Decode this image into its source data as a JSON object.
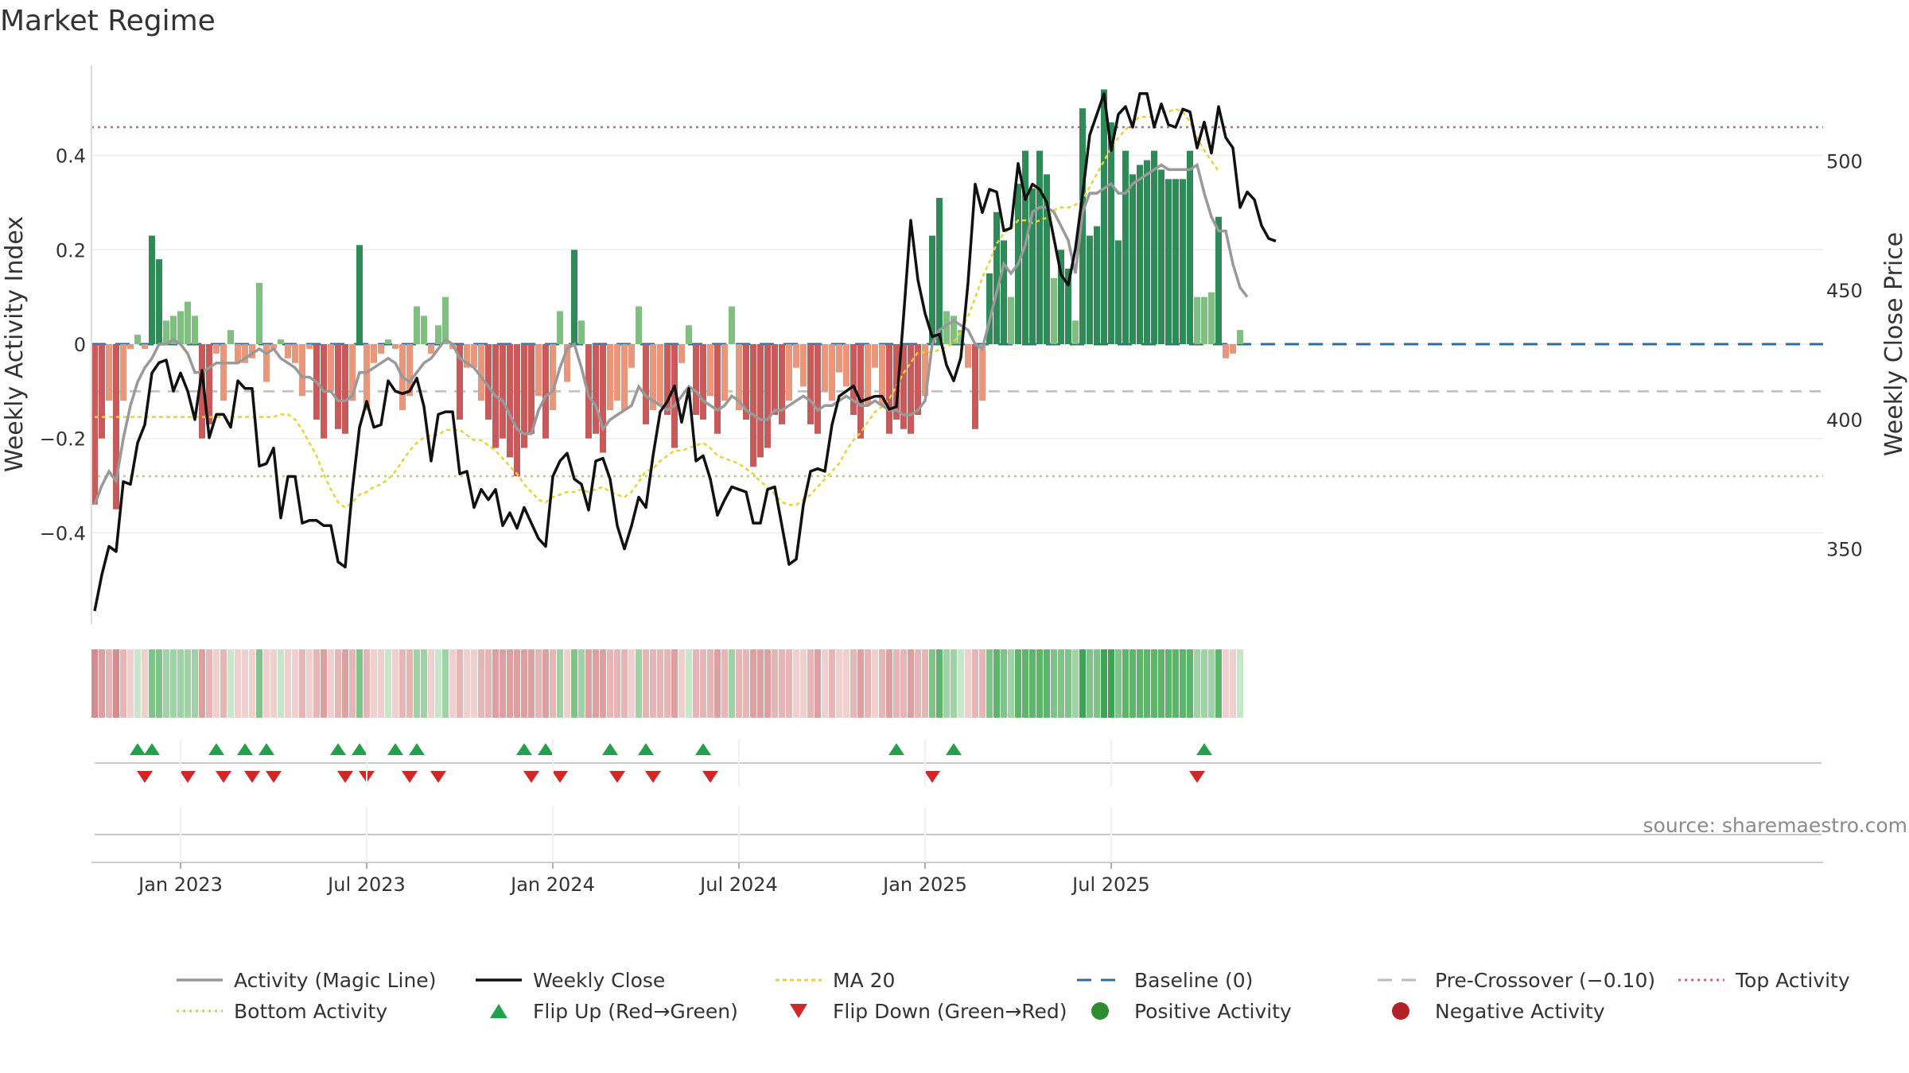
{
  "chart_data": {
    "type": "bar",
    "title": "Market Regime",
    "ylabel_left": "Weekly Activity Index",
    "ylabel_right": "Weekly Close Price",
    "source": "source: sharemaestro.com",
    "yticks_left": [
      "0.4",
      "0.2",
      "0",
      "−0.2",
      "−0.4"
    ],
    "yticks_left_values": [
      0.4,
      0.2,
      0,
      -0.2,
      -0.4
    ],
    "yticks_right": [
      "500",
      "450",
      "400",
      "350"
    ],
    "yticks_right_values": [
      500,
      450,
      400,
      350
    ],
    "xticks": [
      "Jan 2023",
      "Jul 2023",
      "Jan 2024",
      "Jul 2024",
      "Jan 2025",
      "Jul 2025"
    ],
    "xticks_week_index": [
      12,
      38,
      64,
      90,
      116,
      142
    ],
    "ylim_left": [
      -0.6,
      0.6
    ],
    "ylim_right": [
      321,
      537
    ],
    "levels": {
      "top_activity": 0.46,
      "bottom_activity": -0.28,
      "pre_crossover": -0.1,
      "baseline": 0
    },
    "colors": {
      "pos_strong": "#2e8b57",
      "pos_light": "#7fbf7f",
      "neg_strong": "#c95a5a",
      "neg_light": "#e8977a",
      "magic_line": "#999999",
      "close": "#111111",
      "ma20": "#e8d23a",
      "baseline": "#2a6ea6",
      "pre_crossover": "#bbbbbb",
      "top": "#d9607a",
      "bottom": "#a8d870",
      "flip_up": "#22a04b",
      "flip_down": "#d02828",
      "positive_dot": "#2e8b2e",
      "negative_dot": "#b22228"
    },
    "series": [
      {
        "name": "Weekly Activity Index",
        "kind": "bar",
        "values": [
          -0.34,
          -0.2,
          -0.12,
          -0.35,
          -0.12,
          -0.01,
          0.02,
          -0.01,
          0.23,
          0.18,
          0.05,
          0.06,
          0.07,
          0.09,
          0.06,
          -0.2,
          -0.17,
          -0.02,
          -0.12,
          0.03,
          -0.04,
          -0.04,
          -0.03,
          0.13,
          -0.08,
          -0.01,
          0.01,
          -0.03,
          -0.04,
          -0.11,
          -0.01,
          -0.16,
          -0.2,
          -0.1,
          -0.18,
          -0.19,
          -0.12,
          0.21,
          -0.14,
          -0.04,
          -0.02,
          0.01,
          -0.01,
          -0.14,
          -0.11,
          0.08,
          0.06,
          -0.02,
          0.04,
          0.1,
          -0.01,
          -0.16,
          -0.05,
          -0.05,
          -0.12,
          -0.16,
          -0.22,
          -0.2,
          -0.24,
          -0.28,
          -0.22,
          -0.19,
          -0.11,
          -0.2,
          -0.14,
          0.07,
          -0.08,
          0.2,
          0.05,
          -0.2,
          -0.19,
          -0.23,
          -0.14,
          -0.12,
          -0.14,
          -0.05,
          0.08,
          -0.17,
          -0.14,
          -0.13,
          -0.15,
          -0.22,
          -0.04,
          0.04,
          -0.15,
          -0.16,
          -0.11,
          -0.19,
          -0.12,
          0.08,
          -0.14,
          -0.16,
          -0.26,
          -0.24,
          -0.22,
          -0.15,
          -0.17,
          -0.12,
          -0.05,
          -0.09,
          -0.17,
          -0.19,
          -0.1,
          -0.12,
          -0.06,
          -0.09,
          -0.15,
          -0.2,
          -0.13,
          -0.05,
          -0.13,
          -0.19,
          -0.16,
          -0.18,
          -0.19,
          -0.15,
          -0.11,
          0.23,
          0.31,
          0.07,
          0.06,
          0.03,
          -0.05,
          -0.18,
          -0.12,
          0.15,
          0.28,
          0.22,
          0.1,
          0.34,
          0.41,
          0.33,
          0.41,
          0.36,
          0.14,
          0.2,
          0.16,
          0.05,
          0.5,
          0.23,
          0.25,
          0.54,
          0.47,
          0.22,
          0.41,
          0.36,
          0.38,
          0.39,
          0.41,
          0.37,
          0.35,
          0.35,
          0.35,
          0.41,
          0.1,
          0.1,
          0.11,
          0.27,
          -0.03,
          -0.02,
          0.03
        ]
      },
      {
        "name": "Activity (Magic Line)",
        "kind": "line",
        "values": [
          -0.34,
          -0.3,
          -0.27,
          -0.29,
          -0.2,
          -0.13,
          -0.08,
          -0.05,
          -0.03,
          0.0,
          0.0,
          0.01,
          0.0,
          -0.02,
          -0.06,
          -0.06,
          -0.05,
          -0.04,
          -0.04,
          -0.04,
          -0.04,
          -0.03,
          -0.02,
          -0.01,
          -0.02,
          -0.01,
          -0.03,
          -0.04,
          -0.05,
          -0.07,
          -0.07,
          -0.08,
          -0.1,
          -0.1,
          -0.12,
          -0.12,
          -0.11,
          -0.06,
          -0.06,
          -0.05,
          -0.04,
          -0.03,
          -0.04,
          -0.07,
          -0.08,
          -0.06,
          -0.04,
          -0.03,
          -0.01,
          0.01,
          0.0,
          -0.03,
          -0.04,
          -0.05,
          -0.07,
          -0.09,
          -0.11,
          -0.12,
          -0.15,
          -0.18,
          -0.19,
          -0.19,
          -0.14,
          -0.11,
          -0.1,
          -0.05,
          -0.01,
          0.0,
          -0.05,
          -0.11,
          -0.13,
          -0.18,
          -0.16,
          -0.15,
          -0.14,
          -0.13,
          -0.09,
          -0.11,
          -0.12,
          -0.13,
          -0.14,
          -0.13,
          -0.11,
          -0.09,
          -0.1,
          -0.12,
          -0.13,
          -0.14,
          -0.13,
          -0.11,
          -0.12,
          -0.14,
          -0.15,
          -0.16,
          -0.16,
          -0.14,
          -0.14,
          -0.13,
          -0.12,
          -0.11,
          -0.12,
          -0.14,
          -0.13,
          -0.13,
          -0.12,
          -0.11,
          -0.12,
          -0.13,
          -0.13,
          -0.12,
          -0.13,
          -0.14,
          -0.14,
          -0.15,
          -0.15,
          -0.14,
          -0.12,
          0.0,
          0.03,
          0.04,
          0.05,
          0.04,
          0.03,
          0.0,
          -0.01,
          0.05,
          0.11,
          0.17,
          0.15,
          0.17,
          0.21,
          0.28,
          0.29,
          0.29,
          0.28,
          0.25,
          0.22,
          0.15,
          0.28,
          0.32,
          0.32,
          0.33,
          0.34,
          0.32,
          0.32,
          0.34,
          0.35,
          0.36,
          0.37,
          0.38,
          0.37,
          0.37,
          0.37,
          0.37,
          0.38,
          0.32,
          0.27,
          0.24,
          0.24,
          0.17,
          0.12,
          0.1
        ]
      },
      {
        "name": "Weekly Close",
        "kind": "line",
        "axis": "right",
        "values": [
          326,
          340,
          351,
          349,
          376,
          375,
          391,
          398,
          418,
          422,
          423,
          411,
          418,
          411,
          400,
          419,
          393,
          402,
          402,
          397,
          415,
          412,
          412,
          382,
          383,
          389,
          362,
          378,
          378,
          360,
          361,
          361,
          359,
          359,
          345,
          343,
          373,
          397,
          407,
          397,
          398,
          415,
          411,
          410,
          411,
          416,
          405,
          384,
          402,
          403,
          403,
          379,
          380,
          366,
          373,
          369,
          373,
          359,
          364,
          358,
          366,
          360,
          354,
          351,
          378,
          384,
          387,
          377,
          375,
          365,
          384,
          385,
          377,
          359,
          350,
          359,
          370,
          366,
          386,
          403,
          407,
          413,
          399,
          412,
          384,
          386,
          377,
          363,
          369,
          374,
          373,
          372,
          360,
          360,
          373,
          374,
          359,
          344,
          346,
          367,
          380,
          381,
          380,
          398,
          409,
          411,
          413,
          407,
          408,
          409,
          409,
          404,
          405,
          440,
          477,
          454,
          441,
          432,
          433,
          421,
          415,
          424,
          453,
          491,
          480,
          489,
          488,
          473,
          474,
          499,
          485,
          491,
          489,
          484,
          470,
          456,
          452,
          466,
          487,
          510,
          518,
          526,
          504,
          518,
          521,
          513,
          526,
          526,
          513,
          522,
          514,
          513,
          520,
          519,
          505,
          515,
          503,
          521,
          509,
          505,
          482,
          488,
          485,
          475,
          470,
          469
        ]
      },
      {
        "name": "MA 20",
        "kind": "line",
        "style": "dashed",
        "axis": "right",
        "values": [
          401,
          401,
          401,
          401,
          401,
          401,
          401,
          401,
          401,
          401,
          401,
          401,
          401,
          401,
          401,
          401,
          401,
          401,
          401,
          401,
          401,
          401,
          401,
          401,
          401,
          401,
          402,
          402,
          400,
          396,
          391,
          386,
          379,
          373,
          368,
          366,
          368,
          371,
          372,
          374,
          375,
          377,
          380,
          384,
          388,
          391,
          393,
          394,
          394,
          396,
          396,
          396,
          394,
          392,
          392,
          390,
          388,
          385,
          382,
          379,
          375,
          372,
          369,
          368,
          370,
          371,
          372,
          372,
          373,
          372,
          373,
          374,
          372,
          371,
          370,
          372,
          376,
          380,
          381,
          384,
          386,
          388,
          388,
          389,
          390,
          391,
          389,
          386,
          385,
          384,
          383,
          381,
          379,
          376,
          374,
          371,
          368,
          367,
          367,
          369,
          371,
          374,
          377,
          380,
          383,
          388,
          392,
          395,
          399,
          403,
          405,
          408,
          413,
          418,
          422,
          426,
          426,
          426,
          427,
          428,
          430,
          434,
          440,
          447,
          455,
          461,
          468,
          472,
          474,
          477,
          477,
          476,
          477,
          478,
          481,
          482,
          482,
          483,
          485,
          490,
          495,
          500,
          505,
          509,
          512,
          515,
          517,
          517,
          517,
          519,
          519,
          520,
          519,
          515,
          509,
          504,
          500,
          496
        ]
      },
      {
        "name": "Baseline (0)",
        "kind": "hline",
        "value": 0
      },
      {
        "name": "Pre-Crossover (−0.10)",
        "kind": "hline",
        "value": -0.1
      },
      {
        "name": "Top Activity",
        "kind": "hline",
        "value": 0.46
      },
      {
        "name": "Bottom Activity",
        "kind": "hline",
        "value": -0.28
      },
      {
        "name": "Flip Up (Red→Green)",
        "kind": "marker",
        "week_index": [
          6,
          8,
          17,
          21,
          24,
          34,
          37,
          42,
          45,
          60,
          63,
          72,
          77,
          85,
          112,
          120,
          155
        ]
      },
      {
        "name": "Flip Down (Green→Red)",
        "kind": "marker",
        "week_index": [
          7,
          13,
          18,
          22,
          25,
          35,
          38,
          44,
          48,
          61,
          65,
          73,
          78,
          86,
          117,
          154
        ]
      }
    ]
  },
  "legend": [
    {
      "label": "Activity (Magic Line)",
      "symbol": "line-grey"
    },
    {
      "label": "Weekly Close",
      "symbol": "line-black"
    },
    {
      "label": "MA 20",
      "symbol": "dashed-yellow"
    },
    {
      "label": "Baseline (0)",
      "symbol": "dashed-blue"
    },
    {
      "label": "Pre-Crossover (−0.10)",
      "symbol": "dashed-grey"
    },
    {
      "label": "Top Activity",
      "symbol": "dotted-red"
    },
    {
      "label": "Bottom Activity",
      "symbol": "dotted-green"
    },
    {
      "label": "Flip Up (Red→Green)",
      "symbol": "triangle-up"
    },
    {
      "label": "Flip Down (Green→Red)",
      "symbol": "triangle-down"
    },
    {
      "label": "Positive Activity",
      "symbol": "dot-green"
    },
    {
      "label": "Negative Activity",
      "symbol": "dot-red"
    }
  ]
}
